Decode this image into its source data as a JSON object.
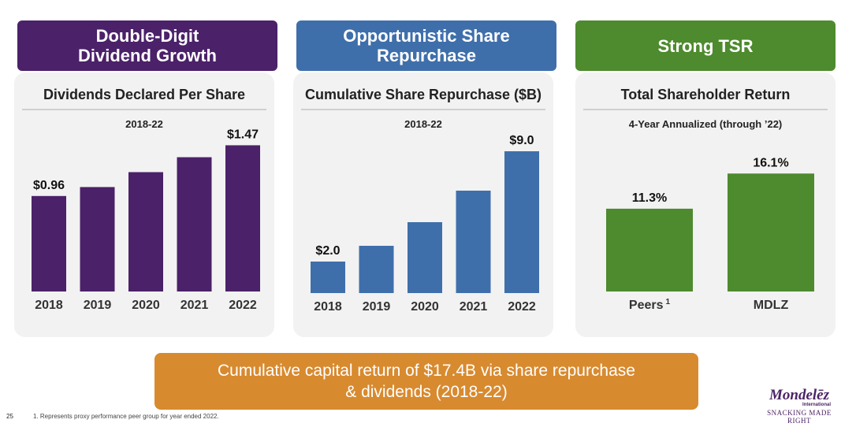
{
  "banners": {
    "dividend": "Double-Digit\nDividend Growth",
    "repurchase": "Opportunistic Share\nRepurchase",
    "tsr": "Strong TSR"
  },
  "colors": {
    "dividend": "#4b2169",
    "repurchase": "#3f6fab",
    "tsr": "#4e8a2e",
    "bottom": "#d88a2f"
  },
  "chart_data": [
    {
      "type": "bar",
      "title": "Dividends Declared Per Share",
      "subtitle": "2018-22",
      "categories": [
        "2018",
        "2019",
        "2020",
        "2021",
        "2022"
      ],
      "values": [
        0.96,
        1.05,
        1.2,
        1.35,
        1.47
      ],
      "data_labels": [
        "$0.96",
        "",
        "",
        "",
        "$1.47"
      ],
      "ylim": [
        0,
        1.6
      ],
      "color": "#4b2169",
      "grid": false
    },
    {
      "type": "bar",
      "title": "Cumulative Share Repurchase ($B)",
      "subtitle": "2018-22",
      "categories": [
        "2018",
        "2019",
        "2020",
        "2021",
        "2022"
      ],
      "values": [
        2.0,
        3.0,
        4.5,
        6.5,
        9.0
      ],
      "data_labels": [
        "$2.0",
        "",
        "",
        "",
        "$9.0"
      ],
      "ylim": [
        0,
        10
      ],
      "color": "#3f6fab",
      "grid": false
    },
    {
      "type": "bar",
      "title": "Total Shareholder Return",
      "subtitle": "4-Year Annualized (through ’22)",
      "categories": [
        "Peers",
        "MDLZ"
      ],
      "category_superscripts": [
        "1",
        ""
      ],
      "values": [
        11.3,
        16.1
      ],
      "data_labels": [
        "11.3%",
        "16.1%"
      ],
      "ylim": [
        0,
        20
      ],
      "color": "#4e8a2e",
      "grid": false
    }
  ],
  "bottom_banner": "Cumulative capital return of $17.4B via share repurchase\n& dividends (2018-22)",
  "footer": {
    "page_number": "25",
    "footnote": "1. Represents proxy performance peer group for year ended 2022."
  },
  "logo": {
    "name": "Mondelēz",
    "sub": "International",
    "tagline": "SNACKING MADE RIGHT"
  }
}
